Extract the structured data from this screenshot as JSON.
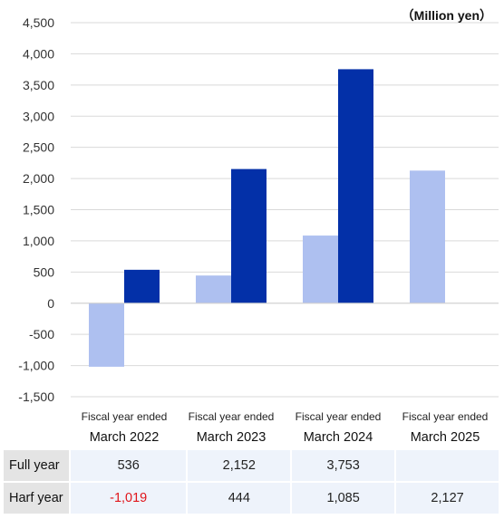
{
  "chart_data": {
    "type": "bar",
    "unit_label": "（Million yen）",
    "categories": [
      {
        "line1": "Fiscal year ended",
        "line2": "March 2022"
      },
      {
        "line1": "Fiscal year ended",
        "line2": "March 2023"
      },
      {
        "line1": "Fiscal year ended",
        "line2": "March 2024"
      },
      {
        "line1": "Fiscal year ended",
        "line2": "March 2025"
      }
    ],
    "series": [
      {
        "name": "Harf year",
        "color": "#aec0f0",
        "values": [
          -1019,
          444,
          1085,
          2127
        ]
      },
      {
        "name": "Full year",
        "color": "#0330a8",
        "values": [
          536,
          2152,
          3753,
          null
        ]
      }
    ],
    "ylim": [
      -1500,
      4500
    ],
    "yticks": [
      4500,
      4000,
      3500,
      3000,
      2500,
      2000,
      1500,
      1000,
      500,
      0,
      -500,
      -1000,
      -1500
    ],
    "ytick_labels": [
      "4,500",
      "4,000",
      "3,500",
      "3,000",
      "2,500",
      "2,000",
      "1,500",
      "1,000",
      "500",
      "0",
      "-500",
      "-1,000",
      "-1,500"
    ],
    "grid": true,
    "xlabel": "",
    "ylabel": ""
  },
  "table": {
    "rows": [
      {
        "label": "Full year",
        "cells": [
          {
            "text": "536",
            "negative": false
          },
          {
            "text": "2,152",
            "negative": false
          },
          {
            "text": "3,753",
            "negative": false
          },
          {
            "text": "",
            "negative": false
          }
        ]
      },
      {
        "label": "Harf year",
        "cells": [
          {
            "text": "-1,019",
            "negative": true
          },
          {
            "text": "444",
            "negative": false
          },
          {
            "text": "1,085",
            "negative": false
          },
          {
            "text": "2,127",
            "negative": false
          }
        ]
      }
    ]
  }
}
